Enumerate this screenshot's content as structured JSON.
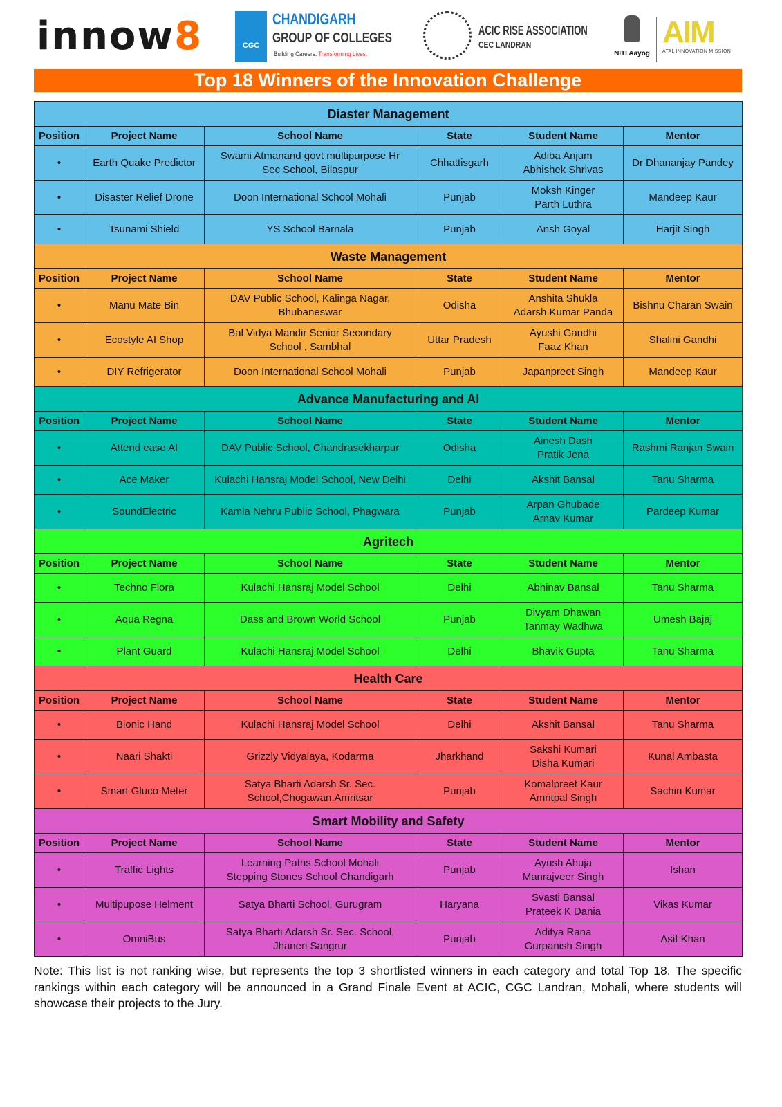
{
  "logos": {
    "innow8": {
      "main": "innow",
      "accent": "8"
    },
    "cgc": {
      "badge": "CGC",
      "line1": "CHANDIGARH",
      "line2": "GROUP OF COLLEGES",
      "tagline1": "Building Careers.",
      "tagline2": "Transforming Lives."
    },
    "acic": {
      "line1": "ACIC RISE ASSOCIATION",
      "line2": "CEC LANDRAN"
    },
    "niti": "NITI Aayog",
    "aim": {
      "logo": "AIM",
      "sub": "ATAL INNOVATION MISSION"
    }
  },
  "title": "Top 18 Winners of the Innovation Challenge",
  "columns": [
    "Position",
    "Project Name",
    "School Name",
    "State",
    "Student Name",
    "Mentor"
  ],
  "sections": [
    {
      "name": "Diaster Management",
      "color": "#63C1E9",
      "rows": [
        [
          "•",
          "Earth Quake Predictor",
          "Swami Atmanand govt multipurpose Hr\nSec School, Bilaspur",
          "Chhattisgarh",
          "Adiba Anjum\nAbhishek Shrivas",
          "Dr Dhananjay Pandey"
        ],
        [
          "•",
          "Disaster Relief Drone",
          "Doon International School Mohali",
          "Punjab",
          "Moksh Kinger\nParth Luthra",
          "Mandeep Kaur"
        ],
        [
          "•",
          "Tsunami Shield",
          "YS School Barnala",
          "Punjab",
          "Ansh Goyal",
          "Harjit Singh"
        ]
      ]
    },
    {
      "name": "Waste Management",
      "color": "#F6AC3F",
      "rows": [
        [
          "•",
          "Manu Mate Bin",
          "DAV Public School, Kalinga Nagar,\nBhubaneswar",
          "Odisha",
          "Anshita Shukla\nAdarsh Kumar Panda",
          "Bishnu Charan Swain"
        ],
        [
          "•",
          "Ecostyle AI Shop",
          "Bal Vidya Mandir Senior Secondary\nSchool , Sambhal",
          "Uttar Pradesh",
          "Ayushi Gandhi\nFaaz Khan",
          "Shalini Gandhi"
        ],
        [
          "•",
          "DIY Refrigerator",
          "Doon International School Mohali",
          "Punjab",
          "Japanpreet Singh",
          "Mandeep Kaur"
        ]
      ]
    },
    {
      "name": "Advance Manufacturing and AI",
      "color": "#00BFAE",
      "rows": [
        [
          "•",
          "Attend ease AI",
          "DAV Public School, Chandrasekharpur",
          "Odisha",
          "Ainesh Dash\nPratik Jena",
          "Rashmi Ranjan Swain"
        ],
        [
          "•",
          "Ace Maker",
          "Kulachi Hansraj Model School, New Delhi",
          "Delhi",
          "Akshit Bansal",
          "Tanu Sharma"
        ],
        [
          "•",
          "SoundElectric",
          "Kamla Nehru Public School, Phagwara",
          "Punjab",
          "Arpan Ghubade\nArnav Kumar",
          "Pardeep Kumar"
        ]
      ]
    },
    {
      "name": "Agritech",
      "color": "#2CFF2C",
      "rows": [
        [
          "•",
          "Techno Flora",
          "Kulachi Hansraj Model School",
          "Delhi",
          "Abhinav Bansal",
          "Tanu Sharma"
        ],
        [
          "•",
          "Aqua Regna",
          "Dass and Brown World School",
          "Punjab",
          "Divyam Dhawan\nTanmay Wadhwa",
          "Umesh Bajaj"
        ],
        [
          "•",
          "Plant Guard",
          "Kulachi Hansraj Model School",
          "Delhi",
          "Bhavik Gupta",
          "Tanu Sharma"
        ]
      ]
    },
    {
      "name": "Health Care",
      "color": "#FF6262",
      "rows": [
        [
          "•",
          "Bionic Hand",
          "Kulachi Hansraj Model School",
          "Delhi",
          "Akshit Bansal",
          "Tanu Sharma"
        ],
        [
          "•",
          "Naari Shakti",
          "Grizzly Vidyalaya, Kodarma",
          "Jharkhand",
          "Sakshi Kumari\nDisha Kumari",
          "Kunal Ambasta"
        ],
        [
          "•",
          "Smart Gluco Meter",
          "Satya Bharti Adarsh Sr. Sec.\nSchool,Chogawan,Amritsar",
          "Punjab",
          "Komalpreet Kaur\nAmritpal Singh",
          "Sachin Kumar"
        ]
      ]
    },
    {
      "name": "Smart Mobility and Safety",
      "color": "#DB5BCB",
      "rows": [
        [
          "•",
          "Traffic Lights",
          "Learning Paths School Mohali\nStepping Stones School Chandigarh",
          "Punjab",
          "Ayush Ahuja\nManrajveer Singh",
          "Ishan"
        ],
        [
          "•",
          "Multipupose Helment",
          "Satya Bharti School, Gurugram",
          "Haryana",
          "Svasti Bansal\nPrateek K Dania",
          "Vikas Kumar"
        ],
        [
          "•",
          "OmniBus",
          "Satya Bharti Adarsh Sr. Sec. School,\nJhaneri Sangrur",
          "Punjab",
          "Aditya Rana\nGurpanish Singh",
          "Asif Khan"
        ]
      ]
    }
  ],
  "note": "Note: This list is not ranking wise, but represents the top 3 shortlisted winners in each category and total Top 18. The specific rankings within each category will be announced in a Grand Finale Event at ACIC, CGC Landran, Mohali, where students will showcase their projects to the Jury.",
  "colors": {
    "title_bar": "#FF6A00",
    "brand_orange": "#FF6A00"
  }
}
